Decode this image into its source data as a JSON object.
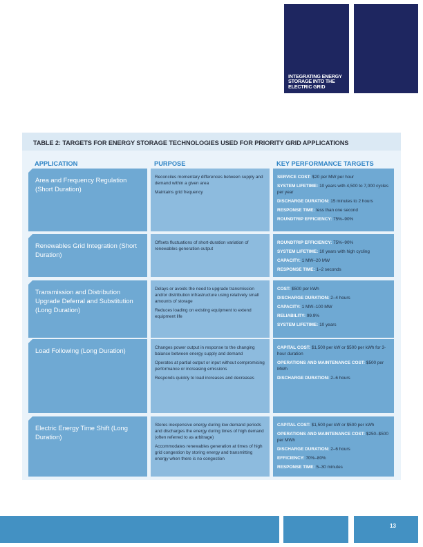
{
  "header": {
    "document_title": "INTEGRATING ENERGY STORAGE INTO THE ELECTRIC GRID"
  },
  "table": {
    "title": "TABLE 2: TARGETS FOR ENERGY STORAGE TECHNOLOGIES USED FOR PRIORITY GRID APPLICATIONS",
    "columns": [
      "APPLICATION",
      "PURPOSE",
      "KEY PERFORMANCE TARGETS"
    ],
    "rows": [
      {
        "application": "Area and Frequency Regulation (Short Duration)",
        "purpose": [
          "Reconciles momentary differences between supply and demand within a given area",
          "Maintains grid frequency"
        ],
        "targets": [
          {
            "label": "SERVICE COST:",
            "value": "$20 per MW per hour"
          },
          {
            "label": "SYSTEM LIFETIME:",
            "value": "10 years with 4,500 to 7,000 cycles per year"
          },
          {
            "label": "DISCHARGE DURATION:",
            "value": "15 minutes to 2 hours"
          },
          {
            "label": "RESPONSE TIME:",
            "value": "less than one second"
          },
          {
            "label": "ROUNDTRIP EFFICIENCY:",
            "value": "75%–90%"
          }
        ]
      },
      {
        "application": "Renewables Grid Integration (Short Duration)",
        "purpose": [
          "Offsets fluctuations of short-duration variation of renewables generation output"
        ],
        "targets": [
          {
            "label": "ROUNDTRIP EFFICIENCY:",
            "value": "75%–90%"
          },
          {
            "label": "SYSTEM LIFETIME:",
            "value": "10 years with high cycling"
          },
          {
            "label": "CAPACITY:",
            "value": "1 MW–20 MW"
          },
          {
            "label": "RESPONSE TIME:",
            "value": "1–2 seconds"
          }
        ]
      },
      {
        "application": "Transmission and Distribution Upgrade Deferral and Substitution (Long Duration)",
        "purpose": [
          "Delays or avoids the need to upgrade transmission and/or distribution infrastructure using relatively small amounts of storage",
          "Reduces loading on existing equipment to extend equipment life"
        ],
        "targets": [
          {
            "label": "COST:",
            "value": "$500 per kWh"
          },
          {
            "label": "DISCHARGE DURATION:",
            "value": "2–4 hours"
          },
          {
            "label": "CAPACITY:",
            "value": "1 MW–100 MW"
          },
          {
            "label": "RELIABILITY:",
            "value": "99.9%"
          },
          {
            "label": "SYSTEM LIFETIME:",
            "value": "10 years"
          }
        ]
      },
      {
        "application": "Load Following (Long Duration)",
        "purpose": [
          "Changes power output in response to the changing balance between energy supply and demand",
          "Operates at partial output or input without compromising performance or increasing emissions",
          "Responds quickly to load increases and decreases"
        ],
        "targets": [
          {
            "label": "CAPITAL COST:",
            "value": "$1,500 per kW or $500 per kWh for 3-hour duration"
          },
          {
            "label": "OPERATIONS AND MAINTENANCE COST:",
            "value": "$500 per MWh"
          },
          {
            "label": "DISCHARGE DURATION:",
            "value": "2–6 hours"
          }
        ]
      },
      {
        "application": "Electric Energy Time Shift (Long Duration)",
        "purpose": [
          "Stores inexpensive energy during low demand periods and discharges the energy during times of high demand (often referred to as arbitrage)",
          "Accommodates renewables generation at times of high grid congestion by storing energy and transmitting energy when there is no congestion"
        ],
        "targets": [
          {
            "label": "CAPITAL COST:",
            "value": "$1,500 per kW or $500 per kWh"
          },
          {
            "label": "OPERATIONS AND MAINTENANCE COST:",
            "value": "$250–$500 per MWh"
          },
          {
            "label": "DISCHARGE DURATION:",
            "value": "2–6 hours"
          },
          {
            "label": "EFFICIENCY:",
            "value": "70%–80%"
          },
          {
            "label": "RESPONSE TIME:",
            "value": "5–30 minutes"
          }
        ]
      }
    ]
  },
  "footer": {
    "page_number": "13"
  }
}
